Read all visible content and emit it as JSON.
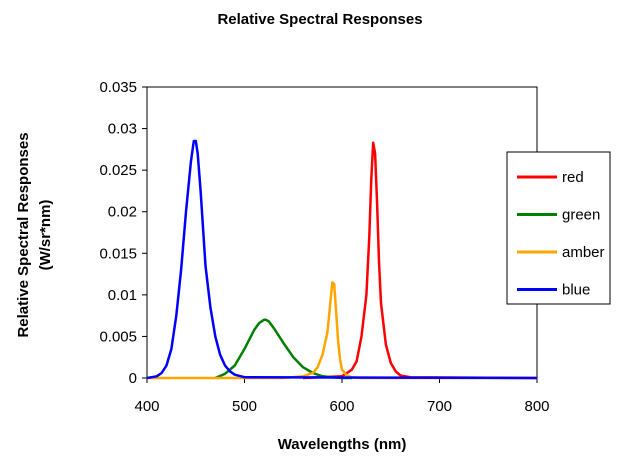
{
  "chart_data": {
    "type": "line",
    "title": "Relative Spectral Responses",
    "xlabel": "Wavelengths (nm)",
    "ylabel": [
      "Relative Spectral Responses",
      "(W/sr*nm)"
    ],
    "xlim": [
      400,
      800
    ],
    "ylim": [
      0,
      0.035
    ],
    "xticks": [
      400,
      500,
      600,
      700,
      800
    ],
    "xtick_labels": [
      "400",
      "500",
      "600",
      "700",
      "800"
    ],
    "yticks": [
      0,
      0.005,
      0.01,
      0.015,
      0.02,
      0.025,
      0.03,
      0.035
    ],
    "ytick_labels": [
      "0",
      "0.005",
      "0.01",
      "0.015",
      "0.02",
      "0.025",
      "0.03",
      "0.035"
    ],
    "grid": false,
    "legend_position": "right",
    "series": [
      {
        "name": "red",
        "color": "#ff0000",
        "x": [
          560,
          600,
          610,
          615,
          620,
          625,
          628,
          630,
          632,
          634,
          636,
          638,
          640,
          645,
          650,
          655,
          660,
          670,
          800
        ],
        "y": [
          0,
          0.0002,
          0.001,
          0.002,
          0.005,
          0.01,
          0.017,
          0.024,
          0.0283,
          0.027,
          0.021,
          0.014,
          0.009,
          0.004,
          0.0018,
          0.0008,
          0.0003,
          0.0001,
          0
        ]
      },
      {
        "name": "green",
        "color": "#008000",
        "x": [
          470,
          480,
          490,
          500,
          510,
          515,
          520,
          522,
          525,
          530,
          540,
          550,
          560,
          570,
          580,
          590,
          600,
          610
        ],
        "y": [
          0,
          0.0005,
          0.0015,
          0.0035,
          0.0058,
          0.0066,
          0.007,
          0.007,
          0.0068,
          0.006,
          0.0042,
          0.0025,
          0.0013,
          0.0006,
          0.0002,
          0.0001,
          0,
          0
        ]
      },
      {
        "name": "amber",
        "color": "#ffa500",
        "x": [
          400,
          540,
          560,
          570,
          575,
          580,
          585,
          588,
          590,
          592,
          594,
          596,
          598,
          600,
          605,
          610,
          620,
          800
        ],
        "y": [
          0,
          0,
          0.0002,
          0.0006,
          0.0013,
          0.0028,
          0.0055,
          0.009,
          0.0115,
          0.0113,
          0.008,
          0.0045,
          0.0022,
          0.001,
          0.0003,
          0.0001,
          0,
          0
        ]
      },
      {
        "name": "blue",
        "color": "#0000ff",
        "x": [
          400,
          410,
          415,
          420,
          425,
          430,
          435,
          440,
          445,
          448,
          450,
          452,
          455,
          458,
          460,
          465,
          470,
          475,
          480,
          485,
          490,
          500,
          800
        ],
        "y": [
          0,
          0.0002,
          0.0006,
          0.0015,
          0.0035,
          0.0075,
          0.013,
          0.02,
          0.026,
          0.0285,
          0.0285,
          0.027,
          0.0225,
          0.017,
          0.0135,
          0.0085,
          0.005,
          0.0028,
          0.0015,
          0.0008,
          0.0004,
          0.0001,
          0
        ]
      }
    ]
  }
}
